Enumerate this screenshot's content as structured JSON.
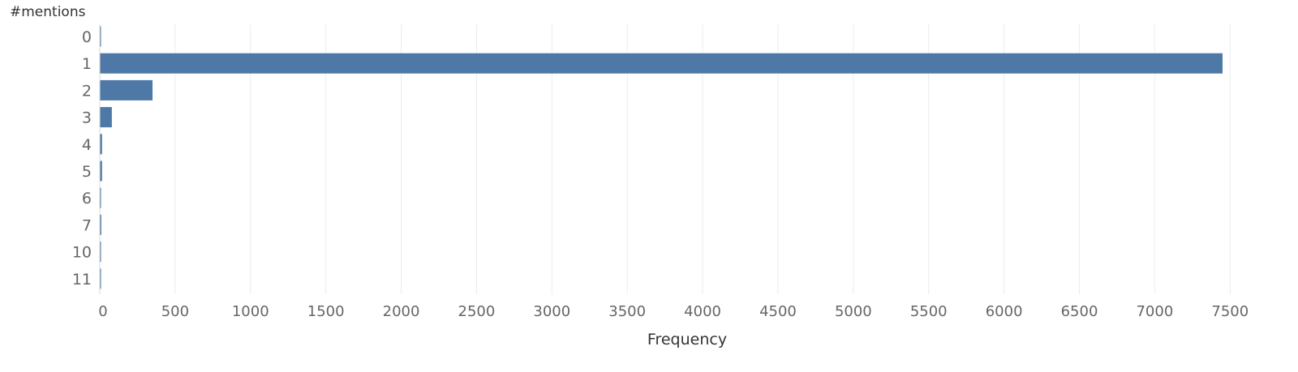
{
  "chart_data": {
    "type": "bar",
    "orientation": "horizontal",
    "dimension_label": "#mentions",
    "xlabel": "Frequency",
    "ylabel": "",
    "categories": [
      "0",
      "1",
      "2",
      "3",
      "4",
      "5",
      "6",
      "7",
      "10",
      "11"
    ],
    "values": [
      3,
      7450,
      350,
      80,
      15,
      15,
      3,
      10,
      3,
      3
    ],
    "xlim": [
      0,
      7700
    ],
    "x_ticks": [
      0,
      500,
      1000,
      1500,
      2000,
      2500,
      3000,
      3500,
      4000,
      4500,
      5000,
      5500,
      6000,
      6500,
      7000,
      7500
    ],
    "grid": "vertical",
    "legend": "none",
    "bar_color": "#4e79a7",
    "grid_color": "#ececec",
    "text_color": "#666666"
  }
}
